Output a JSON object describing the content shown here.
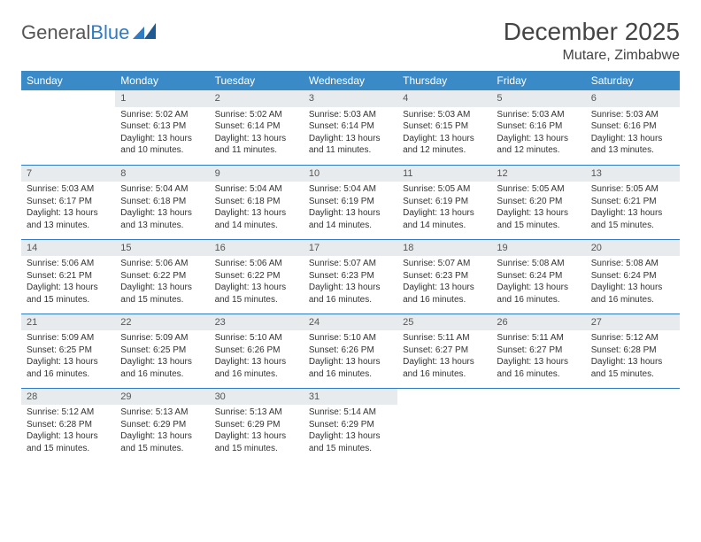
{
  "logo": {
    "text1": "General",
    "text2": "Blue"
  },
  "title": "December 2025",
  "location": "Mutare, Zimbabwe",
  "colors": {
    "header_bg": "#3a8ac8",
    "header_text": "#ffffff",
    "daynum_bg": "#e8ebee",
    "border": "#2f7cc4",
    "text": "#333333",
    "background": "#ffffff"
  },
  "typography": {
    "month_title_pt": 28,
    "location_pt": 16,
    "weekday_pt": 12,
    "daynum_pt": 11,
    "body_pt": 10
  },
  "weekdays": [
    "Sunday",
    "Monday",
    "Tuesday",
    "Wednesday",
    "Thursday",
    "Friday",
    "Saturday"
  ],
  "weeks": [
    [
      null,
      {
        "n": "1",
        "sr": "5:02 AM",
        "ss": "6:13 PM",
        "dl": "13 hours and 10 minutes."
      },
      {
        "n": "2",
        "sr": "5:02 AM",
        "ss": "6:14 PM",
        "dl": "13 hours and 11 minutes."
      },
      {
        "n": "3",
        "sr": "5:03 AM",
        "ss": "6:14 PM",
        "dl": "13 hours and 11 minutes."
      },
      {
        "n": "4",
        "sr": "5:03 AM",
        "ss": "6:15 PM",
        "dl": "13 hours and 12 minutes."
      },
      {
        "n": "5",
        "sr": "5:03 AM",
        "ss": "6:16 PM",
        "dl": "13 hours and 12 minutes."
      },
      {
        "n": "6",
        "sr": "5:03 AM",
        "ss": "6:16 PM",
        "dl": "13 hours and 13 minutes."
      }
    ],
    [
      {
        "n": "7",
        "sr": "5:03 AM",
        "ss": "6:17 PM",
        "dl": "13 hours and 13 minutes."
      },
      {
        "n": "8",
        "sr": "5:04 AM",
        "ss": "6:18 PM",
        "dl": "13 hours and 13 minutes."
      },
      {
        "n": "9",
        "sr": "5:04 AM",
        "ss": "6:18 PM",
        "dl": "13 hours and 14 minutes."
      },
      {
        "n": "10",
        "sr": "5:04 AM",
        "ss": "6:19 PM",
        "dl": "13 hours and 14 minutes."
      },
      {
        "n": "11",
        "sr": "5:05 AM",
        "ss": "6:19 PM",
        "dl": "13 hours and 14 minutes."
      },
      {
        "n": "12",
        "sr": "5:05 AM",
        "ss": "6:20 PM",
        "dl": "13 hours and 15 minutes."
      },
      {
        "n": "13",
        "sr": "5:05 AM",
        "ss": "6:21 PM",
        "dl": "13 hours and 15 minutes."
      }
    ],
    [
      {
        "n": "14",
        "sr": "5:06 AM",
        "ss": "6:21 PM",
        "dl": "13 hours and 15 minutes."
      },
      {
        "n": "15",
        "sr": "5:06 AM",
        "ss": "6:22 PM",
        "dl": "13 hours and 15 minutes."
      },
      {
        "n": "16",
        "sr": "5:06 AM",
        "ss": "6:22 PM",
        "dl": "13 hours and 15 minutes."
      },
      {
        "n": "17",
        "sr": "5:07 AM",
        "ss": "6:23 PM",
        "dl": "13 hours and 16 minutes."
      },
      {
        "n": "18",
        "sr": "5:07 AM",
        "ss": "6:23 PM",
        "dl": "13 hours and 16 minutes."
      },
      {
        "n": "19",
        "sr": "5:08 AM",
        "ss": "6:24 PM",
        "dl": "13 hours and 16 minutes."
      },
      {
        "n": "20",
        "sr": "5:08 AM",
        "ss": "6:24 PM",
        "dl": "13 hours and 16 minutes."
      }
    ],
    [
      {
        "n": "21",
        "sr": "5:09 AM",
        "ss": "6:25 PM",
        "dl": "13 hours and 16 minutes."
      },
      {
        "n": "22",
        "sr": "5:09 AM",
        "ss": "6:25 PM",
        "dl": "13 hours and 16 minutes."
      },
      {
        "n": "23",
        "sr": "5:10 AM",
        "ss": "6:26 PM",
        "dl": "13 hours and 16 minutes."
      },
      {
        "n": "24",
        "sr": "5:10 AM",
        "ss": "6:26 PM",
        "dl": "13 hours and 16 minutes."
      },
      {
        "n": "25",
        "sr": "5:11 AM",
        "ss": "6:27 PM",
        "dl": "13 hours and 16 minutes."
      },
      {
        "n": "26",
        "sr": "5:11 AM",
        "ss": "6:27 PM",
        "dl": "13 hours and 16 minutes."
      },
      {
        "n": "27",
        "sr": "5:12 AM",
        "ss": "6:28 PM",
        "dl": "13 hours and 15 minutes."
      }
    ],
    [
      {
        "n": "28",
        "sr": "5:12 AM",
        "ss": "6:28 PM",
        "dl": "13 hours and 15 minutes."
      },
      {
        "n": "29",
        "sr": "5:13 AM",
        "ss": "6:29 PM",
        "dl": "13 hours and 15 minutes."
      },
      {
        "n": "30",
        "sr": "5:13 AM",
        "ss": "6:29 PM",
        "dl": "13 hours and 15 minutes."
      },
      {
        "n": "31",
        "sr": "5:14 AM",
        "ss": "6:29 PM",
        "dl": "13 hours and 15 minutes."
      },
      null,
      null,
      null
    ]
  ],
  "labels": {
    "sunrise": "Sunrise:",
    "sunset": "Sunset:",
    "daylight": "Daylight:"
  }
}
